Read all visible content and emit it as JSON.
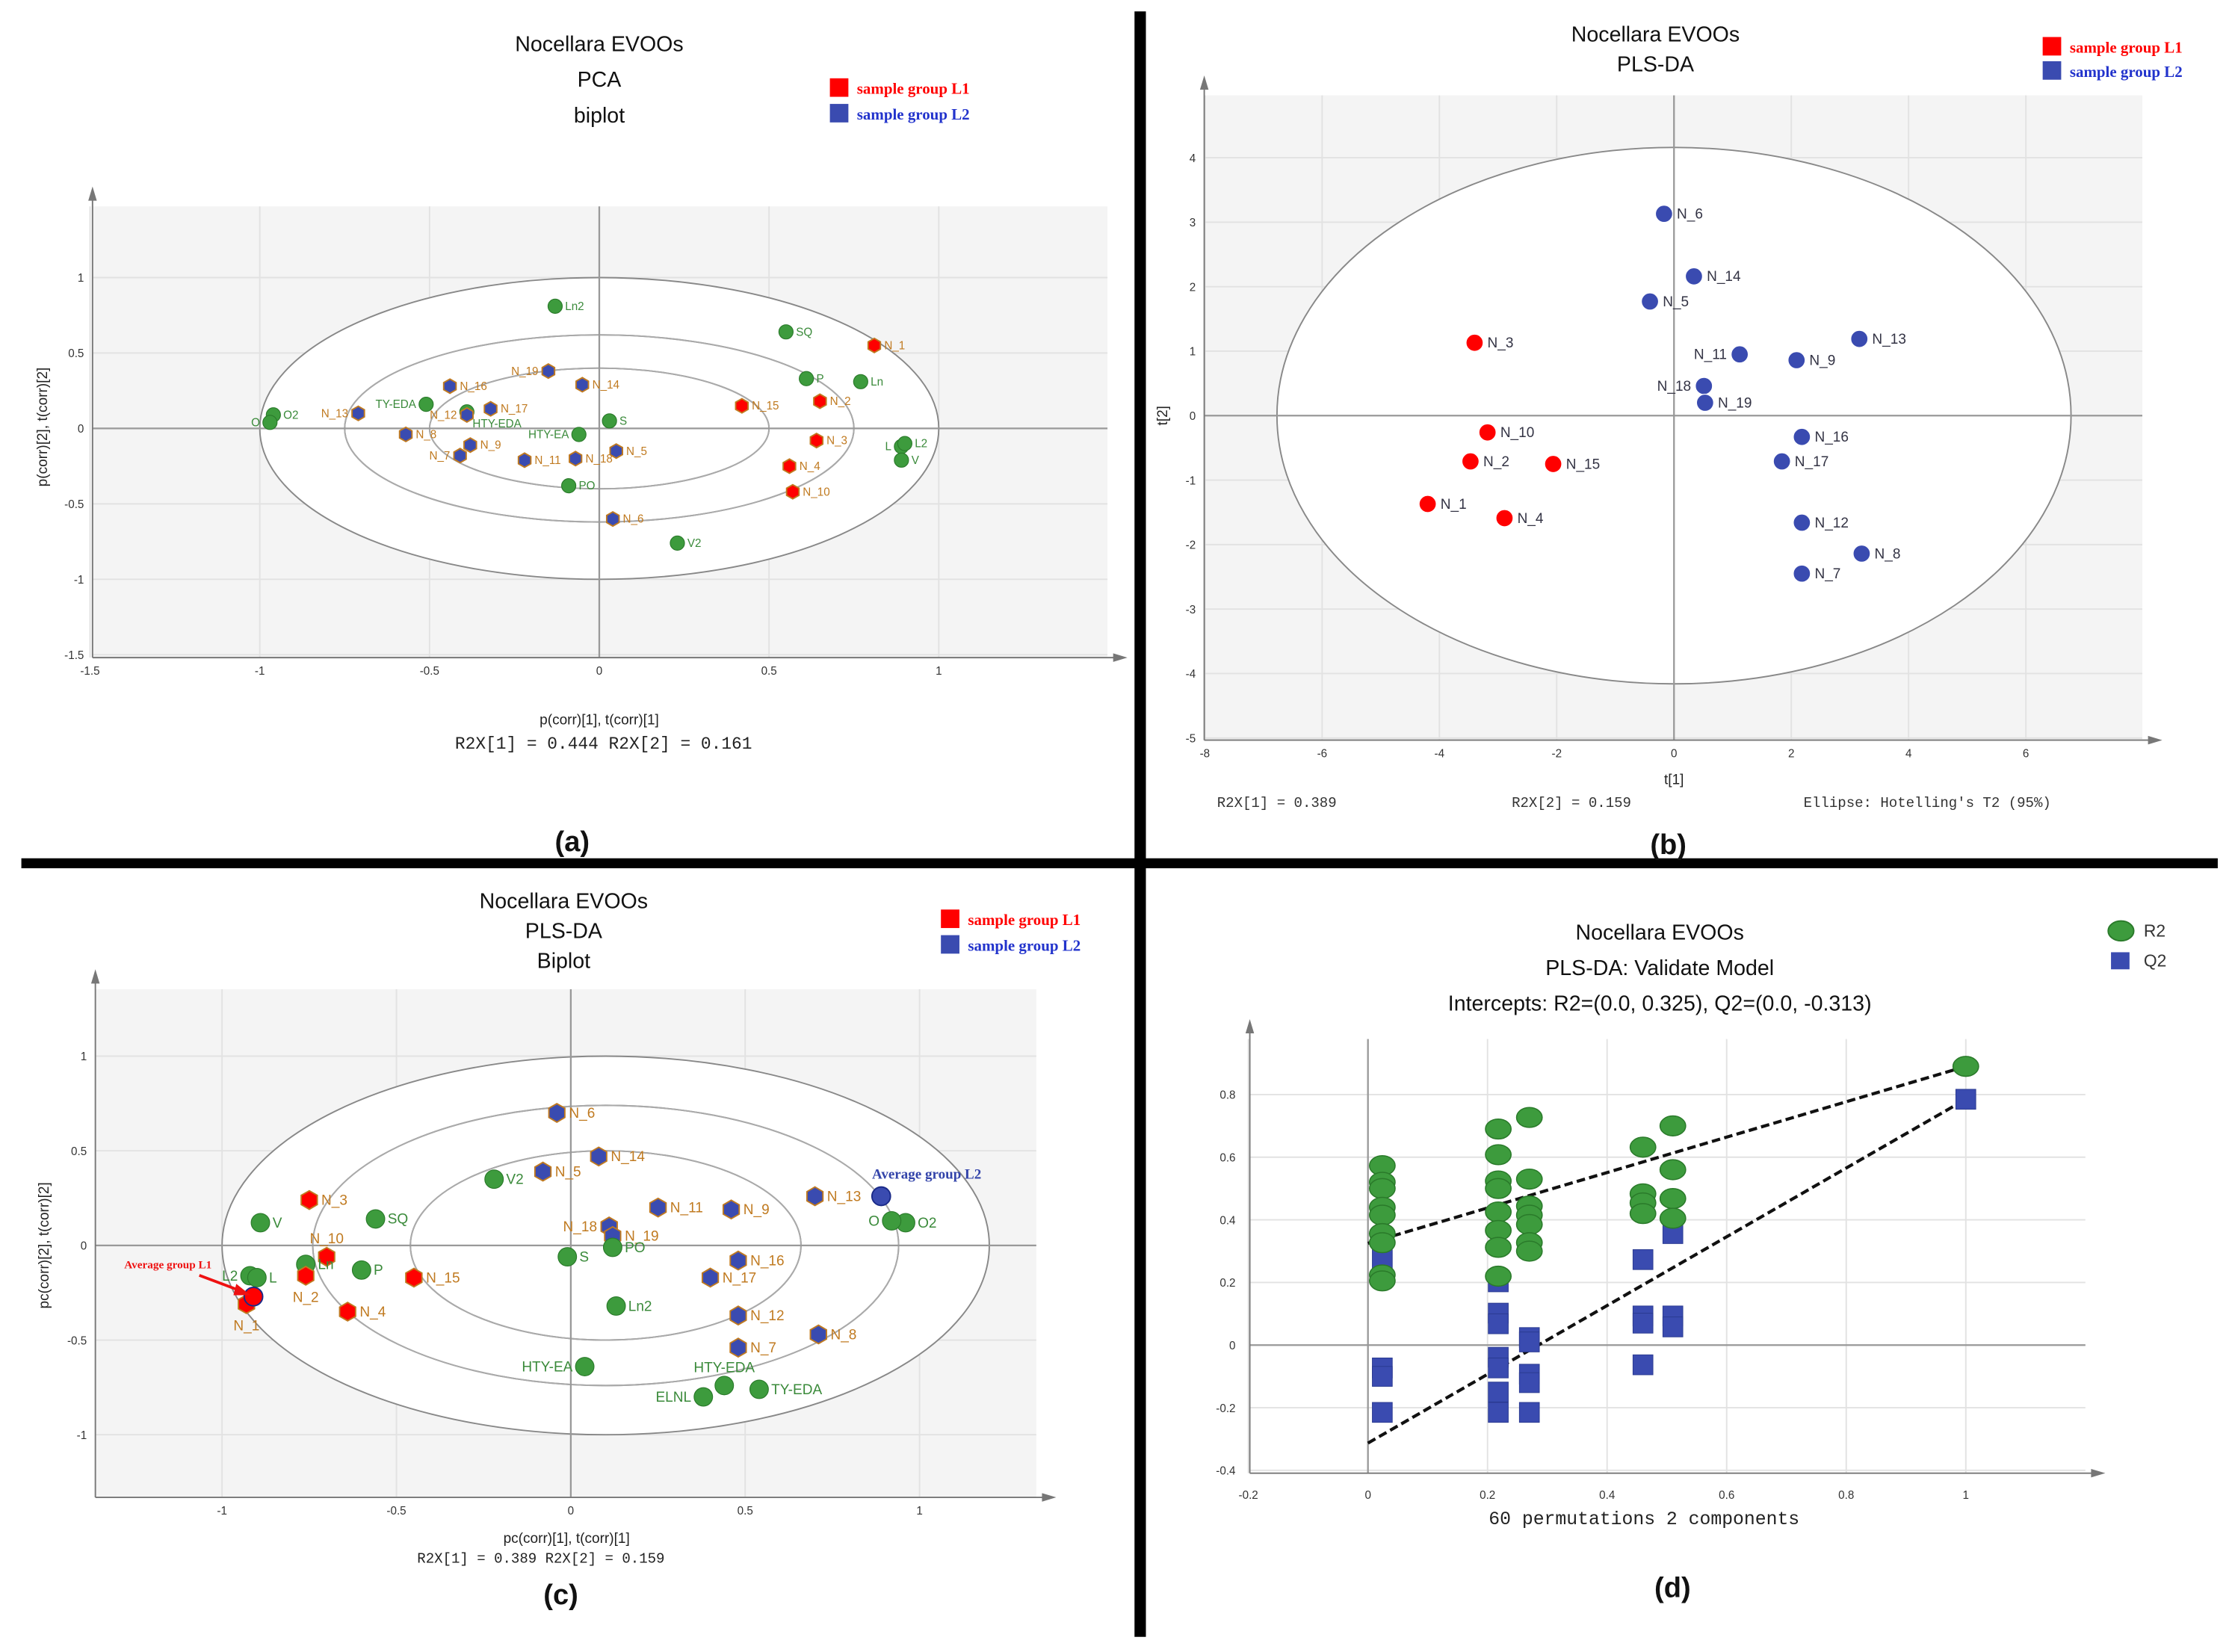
{
  "colors": {
    "l1": "#ff0000",
    "l2": "#3a4bb0",
    "variable": "#3d9b3d",
    "sample_label": "#c07a20",
    "variable_label": "#3a8a3a"
  },
  "legend_groups": {
    "l1": "sample group L1",
    "l2": "sample group L2"
  },
  "panel_labels": [
    "(a)",
    "(b)",
    "(c)",
    "(d)"
  ],
  "chart_data": [
    {
      "type": "scatter",
      "title": [
        "Nocellara EVOOs",
        "PCA",
        "biplot"
      ],
      "xlabel": "p(corr)[1], t(corr)[1]",
      "ylabel": "p(corr)[2], t(corr)[2]",
      "footer": "R2X[1] = 0.444 R2X[2] = 0.161",
      "xlim": [
        -1.5,
        1.5
      ],
      "ylim": [
        -1.5,
        1.5
      ],
      "xticks": [
        "-1.5",
        "-1",
        "-0.5",
        "0",
        "0.5",
        "1"
      ],
      "yticks": [
        "-1.5",
        "-1",
        "-0.5",
        "0",
        "0.5",
        "1"
      ],
      "ellipses": [
        [
          0,
          0,
          1,
          1
        ],
        [
          0,
          0,
          0.75,
          0.62
        ],
        [
          0,
          0,
          0.5,
          0.4
        ]
      ],
      "points": [
        [
          "O2",
          -0.96,
          0.09,
          "var"
        ],
        [
          "O",
          -0.97,
          0.04,
          "var"
        ],
        [
          "N_13",
          -0.71,
          0.1,
          "L2"
        ],
        [
          "TY-EDA",
          -0.51,
          0.16,
          "var"
        ],
        [
          "HTY-EDA",
          -0.39,
          0.11,
          "var"
        ],
        [
          "N_12",
          -0.39,
          0.09,
          "L2"
        ],
        [
          "N_16",
          -0.44,
          0.28,
          "L2"
        ],
        [
          "N_17",
          -0.32,
          0.13,
          "L2"
        ],
        [
          "N_19",
          -0.15,
          0.38,
          "L2"
        ],
        [
          "N_14",
          -0.05,
          0.29,
          "L2"
        ],
        [
          "Ln2",
          -0.13,
          0.81,
          "var"
        ],
        [
          "S",
          0.03,
          0.05,
          "var"
        ],
        [
          "HTY-EA",
          -0.06,
          -0.04,
          "var"
        ],
        [
          "N_8",
          -0.57,
          -0.04,
          "L2"
        ],
        [
          "N_9",
          -0.38,
          -0.11,
          "L2"
        ],
        [
          "N_7",
          -0.41,
          -0.18,
          "L2"
        ],
        [
          "N_11",
          -0.22,
          -0.21,
          "L2"
        ],
        [
          "N_18",
          -0.07,
          -0.2,
          "L2"
        ],
        [
          "N_5",
          0.05,
          -0.15,
          "L2"
        ],
        [
          "PO",
          -0.09,
          -0.38,
          "var"
        ],
        [
          "N_6",
          0.04,
          -0.6,
          "L2"
        ],
        [
          "V2",
          0.23,
          -0.76,
          "var"
        ],
        [
          "SQ",
          0.55,
          0.64,
          "var"
        ],
        [
          "N_1",
          0.81,
          0.55,
          "L1"
        ],
        [
          "P",
          0.61,
          0.33,
          "var"
        ],
        [
          "Ln",
          0.77,
          0.31,
          "var"
        ],
        [
          "N_15",
          0.42,
          0.15,
          "L1"
        ],
        [
          "N_2",
          0.65,
          0.18,
          "L1"
        ],
        [
          "N_3",
          0.64,
          -0.08,
          "L1"
        ],
        [
          "N_4",
          0.56,
          -0.25,
          "L1"
        ],
        [
          "N_10",
          0.57,
          -0.42,
          "L1"
        ],
        [
          "L",
          0.89,
          -0.12,
          "var"
        ],
        [
          "L2",
          0.9,
          -0.1,
          "var"
        ],
        [
          "V",
          0.89,
          -0.21,
          "var"
        ]
      ]
    },
    {
      "type": "scatter",
      "title": [
        "Nocellara EVOOs",
        "PLS-DA"
      ],
      "xlabel": "t[1]",
      "ylabel": "t[2]",
      "footer": [
        "R2X[1] = 0.389",
        "R2X[2] = 0.159",
        "Ellipse: Hotelling's T2 (95%)"
      ],
      "xlim": [
        -8,
        8
      ],
      "ylim": [
        -5,
        4.5
      ],
      "xticks": [
        "-8",
        "-6",
        "-4",
        "-2",
        "0",
        "2",
        "4",
        "6"
      ],
      "yticks": [
        "-5",
        "-4",
        "-3",
        "-2",
        "-1",
        "0",
        "1",
        "2",
        "3",
        "4"
      ],
      "ellipses": [
        [
          0,
          0,
          6.77,
          4.16
        ]
      ],
      "points": [
        [
          "N_6",
          -0.17,
          3.13,
          "L2"
        ],
        [
          "N_14",
          0.34,
          2.16,
          "L2"
        ],
        [
          "N_5",
          -0.41,
          1.77,
          "L2"
        ],
        [
          "N_3",
          -3.4,
          1.13,
          "L1"
        ],
        [
          "N_11",
          1.12,
          0.95,
          "L2"
        ],
        [
          "N_9",
          2.09,
          0.86,
          "L2"
        ],
        [
          "N_13",
          3.16,
          1.19,
          "L2"
        ],
        [
          "N_18",
          0.51,
          0.46,
          "L2"
        ],
        [
          "N_19",
          0.53,
          0.2,
          "L2"
        ],
        [
          "N_10",
          -3.18,
          -0.26,
          "L1"
        ],
        [
          "N_16",
          2.18,
          -0.33,
          "L2"
        ],
        [
          "N_17",
          1.84,
          -0.71,
          "L2"
        ],
        [
          "N_2",
          -3.47,
          -0.71,
          "L1"
        ],
        [
          "N_15",
          -2.06,
          -0.75,
          "L1"
        ],
        [
          "N_1",
          -4.2,
          -1.37,
          "L1"
        ],
        [
          "N_4",
          -2.89,
          -1.59,
          "L1"
        ],
        [
          "N_12",
          2.18,
          -1.66,
          "L2"
        ],
        [
          "N_8",
          3.2,
          -2.14,
          "L2"
        ],
        [
          "N_7",
          2.18,
          -2.45,
          "L2"
        ]
      ]
    },
    {
      "type": "scatter",
      "title": [
        "Nocellara EVOOs",
        "PLS-DA",
        "Biplot"
      ],
      "xlabel": "pc(corr)[1], t(corr)[1]",
      "ylabel": "pc(corr)[2], t(corr)[2]",
      "footer": "R2X[1] = 0.389 R2X[2] = 0.159",
      "xlim": [
        -1.35,
        1.35
      ],
      "ylim": [
        -1.33,
        1.35
      ],
      "xticks": [
        "-1",
        "-0.5",
        "0",
        "0.5",
        "1"
      ],
      "yticks": [
        "-1",
        "-0.5",
        "0",
        "0.5",
        "1"
      ],
      "ellipses": [
        [
          0.1,
          0,
          1.1,
          1.0
        ],
        [
          0.1,
          0,
          0.84,
          0.74
        ],
        [
          0.1,
          0,
          0.56,
          0.5
        ]
      ],
      "annotations": {
        "avg_l1": "Average group L1",
        "avg_l2": "Average group L2"
      },
      "points": [
        [
          "N_6",
          -0.04,
          0.7,
          "L2"
        ],
        [
          "N_14",
          0.08,
          0.47,
          "L2"
        ],
        [
          "N_5",
          -0.08,
          0.39,
          "L2"
        ],
        [
          "V2",
          -0.22,
          0.35,
          "var"
        ],
        [
          "N_3",
          -0.75,
          0.24,
          "L1"
        ],
        [
          "N_11",
          0.25,
          0.2,
          "L2"
        ],
        [
          "N_9",
          0.46,
          0.19,
          "L2"
        ],
        [
          "N_13",
          0.7,
          0.26,
          "L2"
        ],
        [
          "O2",
          0.96,
          0.12,
          "var"
        ],
        [
          "O",
          0.92,
          0.13,
          "var"
        ],
        [
          "V",
          -0.89,
          0.12,
          "var"
        ],
        [
          "SQ",
          -0.56,
          0.14,
          "var"
        ],
        [
          "N_10",
          -0.7,
          -0.06,
          "L1"
        ],
        [
          "Ln",
          -0.76,
          -0.1,
          "var"
        ],
        [
          "N_18",
          0.11,
          0.1,
          "L2"
        ],
        [
          "N_19",
          0.12,
          0.05,
          "L2"
        ],
        [
          "S",
          -0.01,
          -0.06,
          "var"
        ],
        [
          "PO",
          0.12,
          -0.01,
          "var"
        ],
        [
          "N_16",
          0.48,
          -0.08,
          "L2"
        ],
        [
          "N_17",
          0.4,
          -0.17,
          "L2"
        ],
        [
          "N_15",
          -0.45,
          -0.17,
          "L1"
        ],
        [
          "P",
          -0.6,
          -0.13,
          "var"
        ],
        [
          "L2",
          -0.92,
          -0.16,
          "var"
        ],
        [
          "L",
          -0.9,
          -0.17,
          "var"
        ],
        [
          "N_2",
          -0.76,
          -0.16,
          "L1"
        ],
        [
          "N_1",
          -0.93,
          -0.31,
          "L1"
        ],
        [
          "N_4",
          -0.64,
          -0.35,
          "L1"
        ],
        [
          "Ln2",
          0.13,
          -0.32,
          "var"
        ],
        [
          "N_12",
          0.48,
          -0.37,
          "L2"
        ],
        [
          "N_8",
          0.71,
          -0.47,
          "L2"
        ],
        [
          "N_7",
          0.48,
          -0.54,
          "L2"
        ],
        [
          "HTY-EA",
          0.04,
          -0.64,
          "var"
        ],
        [
          "HTY-EDA",
          0.44,
          -0.74,
          "var"
        ],
        [
          "ELNL",
          0.38,
          -0.8,
          "var"
        ],
        [
          "TY-EDA",
          0.54,
          -0.76,
          "var"
        ],
        [
          "",
          -0.91,
          -0.27,
          "avg1"
        ],
        [
          "",
          0.89,
          0.26,
          "avg2"
        ]
      ]
    },
    {
      "type": "scatter",
      "title": [
        "Nocellara EVOOs",
        "PLS-DA: Validate Model",
        "Intercepts: R2=(0.0, 0.325), Q2=(0.0, -0.313)"
      ],
      "xlabel": "60 permutations 2 components",
      "xlim": [
        -0.2,
        1.2
      ],
      "ylim": [
        -0.4,
        0.92
      ],
      "xticks": [
        "-0.2",
        "0",
        "0.2",
        "0.4",
        "0.6",
        "0.8",
        "1"
      ],
      "yticks": [
        "-0.4",
        "-0.2",
        "0",
        "0.2",
        "0.4",
        "0.6",
        "0.8"
      ],
      "legend": [
        "R2",
        "Q2"
      ],
      "intercepts": {
        "R2": [
          0.0,
          0.325
        ],
        "Q2": [
          0.0,
          -0.313
        ]
      },
      "series": [
        {
          "name": "R2",
          "points": [
            [
              0.024,
              0.573
            ],
            [
              0.024,
              0.52
            ],
            [
              0.024,
              0.5
            ],
            [
              0.024,
              0.44
            ],
            [
              0.024,
              0.415
            ],
            [
              0.024,
              0.356
            ],
            [
              0.024,
              0.327
            ],
            [
              0.024,
              0.224
            ],
            [
              0.024,
              0.205
            ],
            [
              0.218,
              0.69
            ],
            [
              0.218,
              0.608
            ],
            [
              0.218,
              0.524
            ],
            [
              0.218,
              0.5
            ],
            [
              0.218,
              0.425
            ],
            [
              0.218,
              0.366
            ],
            [
              0.218,
              0.312
            ],
            [
              0.218,
              0.22
            ],
            [
              0.27,
              0.727
            ],
            [
              0.27,
              0.53
            ],
            [
              0.27,
              0.444
            ],
            [
              0.27,
              0.415
            ],
            [
              0.27,
              0.385
            ],
            [
              0.27,
              0.327
            ],
            [
              0.27,
              0.3
            ],
            [
              0.46,
              0.632
            ],
            [
              0.46,
              0.483
            ],
            [
              0.46,
              0.454
            ],
            [
              0.46,
              0.42
            ],
            [
              0.51,
              0.7
            ],
            [
              0.51,
              0.56
            ],
            [
              0.51,
              0.468
            ],
            [
              0.51,
              0.405
            ],
            [
              1.0,
              0.89
            ]
          ]
        },
        {
          "name": "Q2",
          "points": [
            [
              0.024,
              0.273
            ],
            [
              0.024,
              -0.073
            ],
            [
              0.024,
              -0.1
            ],
            [
              0.024,
              -0.215
            ],
            [
              0.218,
              0.202
            ],
            [
              0.218,
              0.102
            ],
            [
              0.218,
              0.068
            ],
            [
              0.218,
              -0.039
            ],
            [
              0.218,
              -0.073
            ],
            [
              0.218,
              -0.15
            ],
            [
              0.218,
              -0.215
            ],
            [
              0.27,
              0.024
            ],
            [
              0.27,
              0.01
            ],
            [
              0.27,
              -0.093
            ],
            [
              0.27,
              -0.12
            ],
            [
              0.27,
              -0.215
            ],
            [
              0.46,
              0.273
            ],
            [
              0.46,
              0.093
            ],
            [
              0.46,
              0.07
            ],
            [
              0.46,
              -0.063
            ],
            [
              0.51,
              0.356
            ],
            [
              0.51,
              0.093
            ],
            [
              0.51,
              0.058
            ],
            [
              1.0,
              0.785
            ]
          ]
        }
      ]
    }
  ]
}
